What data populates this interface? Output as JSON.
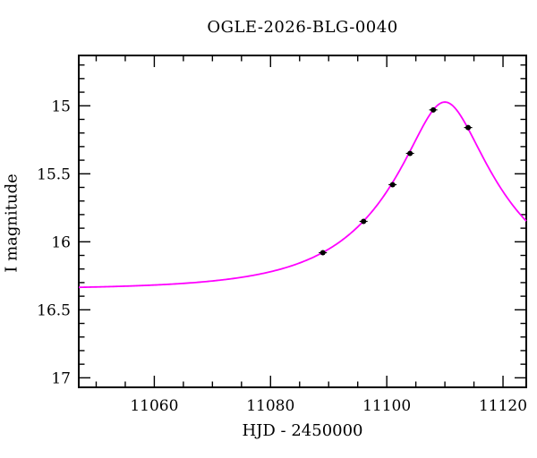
{
  "chart_data": {
    "type": "line",
    "title": "OGLE-2026-BLG-0040",
    "xlabel": "HJD - 2450000",
    "ylabel": "I magnitude",
    "xlim": [
      11047,
      11124
    ],
    "ylim": [
      17.07,
      14.63
    ],
    "y_inverted": true,
    "grid": false,
    "legend": "none",
    "x_major_ticks": [
      11060,
      11080,
      11100,
      11120
    ],
    "x_major_tick_labels": [
      "11060",
      "11080",
      "11100",
      "11120"
    ],
    "x_minor_step": 5,
    "y_major_ticks": [
      15,
      15.5,
      16,
      16.5,
      17
    ],
    "y_major_tick_labels": [
      "15",
      "15.5",
      "16",
      "16.5",
      "17"
    ],
    "y_minor_step": 0.1,
    "curve_color": "#ff00ff",
    "point_color": "#000000",
    "frame_color": "#000000",
    "series": [
      {
        "name": "paczynski-model-curve",
        "kind": "model",
        "model": {
          "type": "paczynski-microlensing",
          "t0": 11110,
          "tE": 20,
          "u0": 0.29,
          "baseline_mag": 16.35,
          "peak_mag": 14.97
        }
      },
      {
        "name": "observed-points",
        "kind": "scatter",
        "points": [
          [
            11089,
            16.08
          ],
          [
            11096,
            15.85
          ],
          [
            11101,
            15.58
          ],
          [
            11104,
            15.35
          ],
          [
            11108,
            15.03
          ],
          [
            11114,
            15.16
          ]
        ]
      }
    ]
  }
}
